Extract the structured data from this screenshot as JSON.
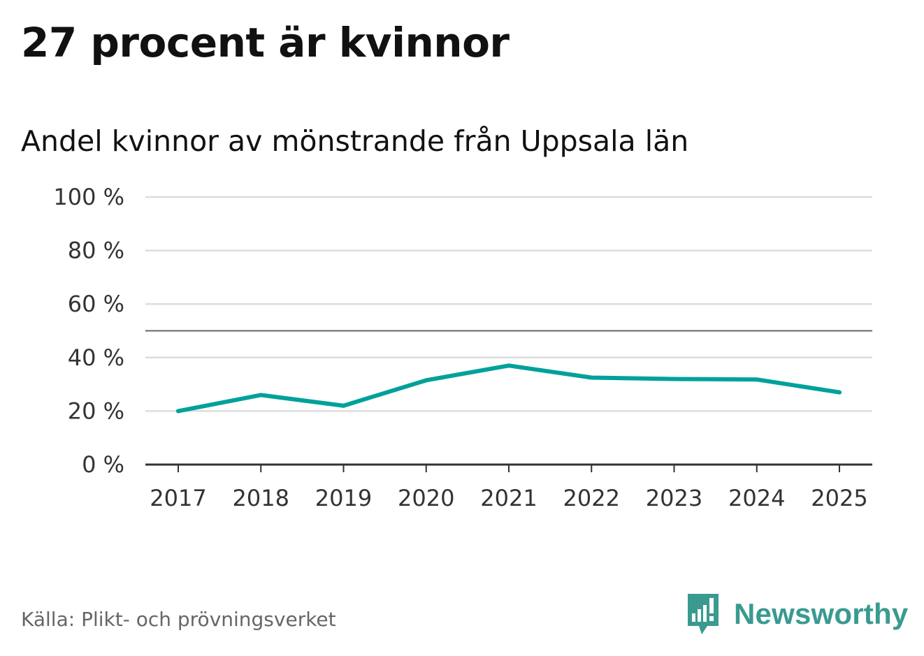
{
  "title": "27 procent är kvinnor",
  "subtitle": "Andel kvinnor av mönstrande från Uppsala län",
  "source": "Källa: Plikt- och prövningsverket",
  "brand": {
    "name": "Newsworthy",
    "icon": "newsworthy-logo-icon",
    "color": "#3a9a90"
  },
  "chart_data": {
    "type": "line",
    "categories": [
      "2017",
      "2018",
      "2019",
      "2020",
      "2021",
      "2022",
      "2023",
      "2024",
      "2025"
    ],
    "series": [
      {
        "name": "Andel kvinnor",
        "color": "#00a19a",
        "values": [
          20,
          26,
          22,
          31.5,
          37,
          32.5,
          32,
          31.8,
          27
        ]
      }
    ],
    "ylim": [
      0,
      100
    ],
    "yticks": [
      0,
      20,
      40,
      60,
      80,
      100
    ],
    "ytick_labels": [
      "0 %",
      "20 %",
      "40 %",
      "60 %",
      "80 %",
      "100 %"
    ],
    "reference_line": 50,
    "grid": true,
    "xlabel": "",
    "ylabel": ""
  }
}
